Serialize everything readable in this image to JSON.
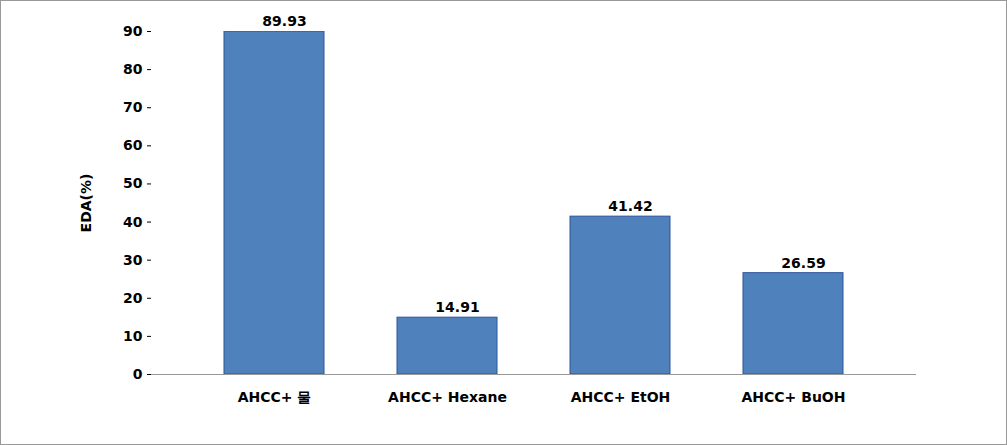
{
  "chart_data": {
    "type": "bar",
    "y_label": "EDA(%)",
    "categories": [
      "AHCC+ 물",
      "AHCC+ Hexane",
      "AHCC+ EtOH",
      "AHCC+ BuOH"
    ],
    "values": [
      89.93,
      14.91,
      41.42,
      26.59
    ],
    "color": "#4f81bd",
    "ylim": [
      0,
      90
    ],
    "yticks": [
      0,
      10,
      20,
      30,
      40,
      50,
      60,
      70,
      80,
      90
    ],
    "grid": false,
    "data_labels": true
  }
}
